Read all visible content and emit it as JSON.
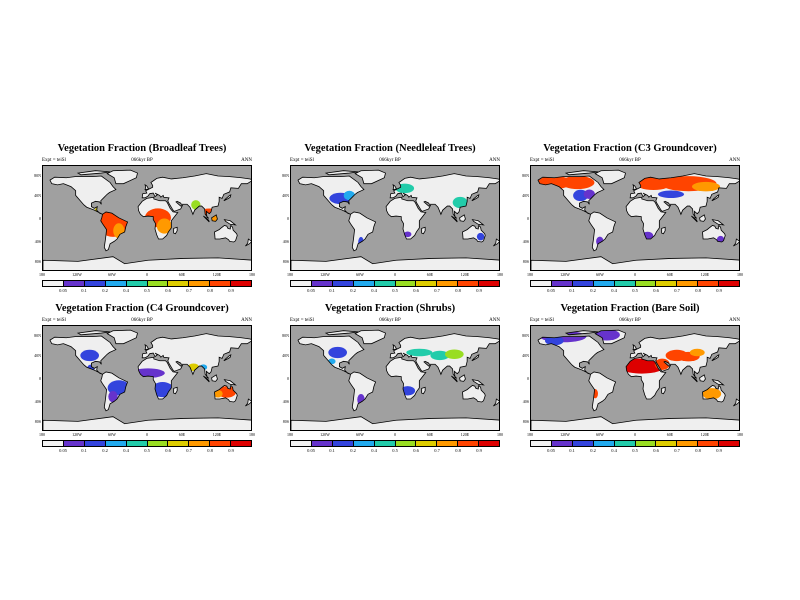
{
  "meta": {
    "expt": "Expt = teiSl",
    "period": "066kyr BP",
    "season": "ANN"
  },
  "lat_labels": [
    "80N",
    "40N",
    "0",
    "40S",
    "80S"
  ],
  "lon_labels": [
    "180",
    "120W",
    "60W",
    "0",
    "60E",
    "120E",
    "180"
  ],
  "colorbar": {
    "levels": [
      "0.05",
      "0.1",
      "0.2",
      "0.4",
      "0.5",
      "0.6",
      "0.7",
      "0.8",
      "0.9"
    ],
    "colors": [
      "#f2f2f2",
      "#6633cc",
      "#3344dd",
      "#22aaee",
      "#22ccaa",
      "#99dd22",
      "#ddcc00",
      "#ff9900",
      "#ff4400",
      "#dd0000"
    ]
  },
  "colors": {
    "ocean": "#a0a0a0",
    "land_empty": "#efefef",
    "coast": "#000000"
  },
  "panels": [
    {
      "title": "Vegetation Fraction (Broadleaf Trees)",
      "variable": "broadleaf"
    },
    {
      "title": "Vegetation Fraction (Needleleaf Trees)",
      "variable": "needleleaf"
    },
    {
      "title": "Vegetation Fraction (C3 Groundcover)",
      "variable": "c3"
    },
    {
      "title": "Vegetation Fraction (C4 Groundcover)",
      "variable": "c4"
    },
    {
      "title": "Vegetation Fraction (Shrubs)",
      "variable": "shrubs"
    },
    {
      "title": "Vegetation Fraction (Bare Soil)",
      "variable": "bare"
    }
  ]
}
